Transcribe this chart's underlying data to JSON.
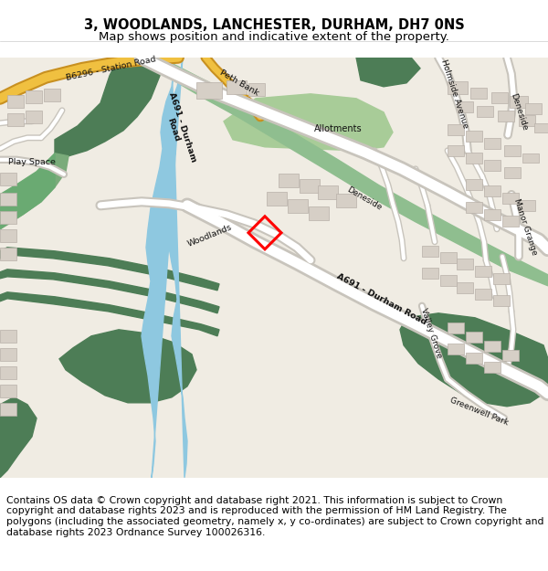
{
  "title": "3, WOODLANDS, LANCHESTER, DURHAM, DH7 0NS",
  "subtitle": "Map shows position and indicative extent of the property.",
  "footer": "Contains OS data © Crown copyright and database right 2021. This information is subject to Crown copyright and database rights 2023 and is reproduced with the permission of HM Land Registry. The polygons (including the associated geometry, namely x, y co-ordinates) are subject to Crown copyright and database rights 2023 Ordnance Survey 100026316.",
  "title_fontsize": 10.5,
  "subtitle_fontsize": 9.5,
  "footer_fontsize": 7.8,
  "fig_width": 6.0,
  "fig_height": 6.25,
  "bg_color": "#f0ece3",
  "building_color": "#d6cfc6",
  "building_edge": "#b8b0a8",
  "green_dark": "#4d7d56",
  "green_medium": "#7aab7a",
  "green_light": "#a8cc98",
  "green_strip": "#8fbe8f",
  "blue_river": "#8ec8e0",
  "road_white": "#ffffff",
  "road_grey": "#c8c4bc",
  "road_orange": "#f0b040",
  "road_orange_dark": "#d89020",
  "property_color": "#ff0000",
  "text_color": "#111111",
  "road_label_color": "#222222"
}
